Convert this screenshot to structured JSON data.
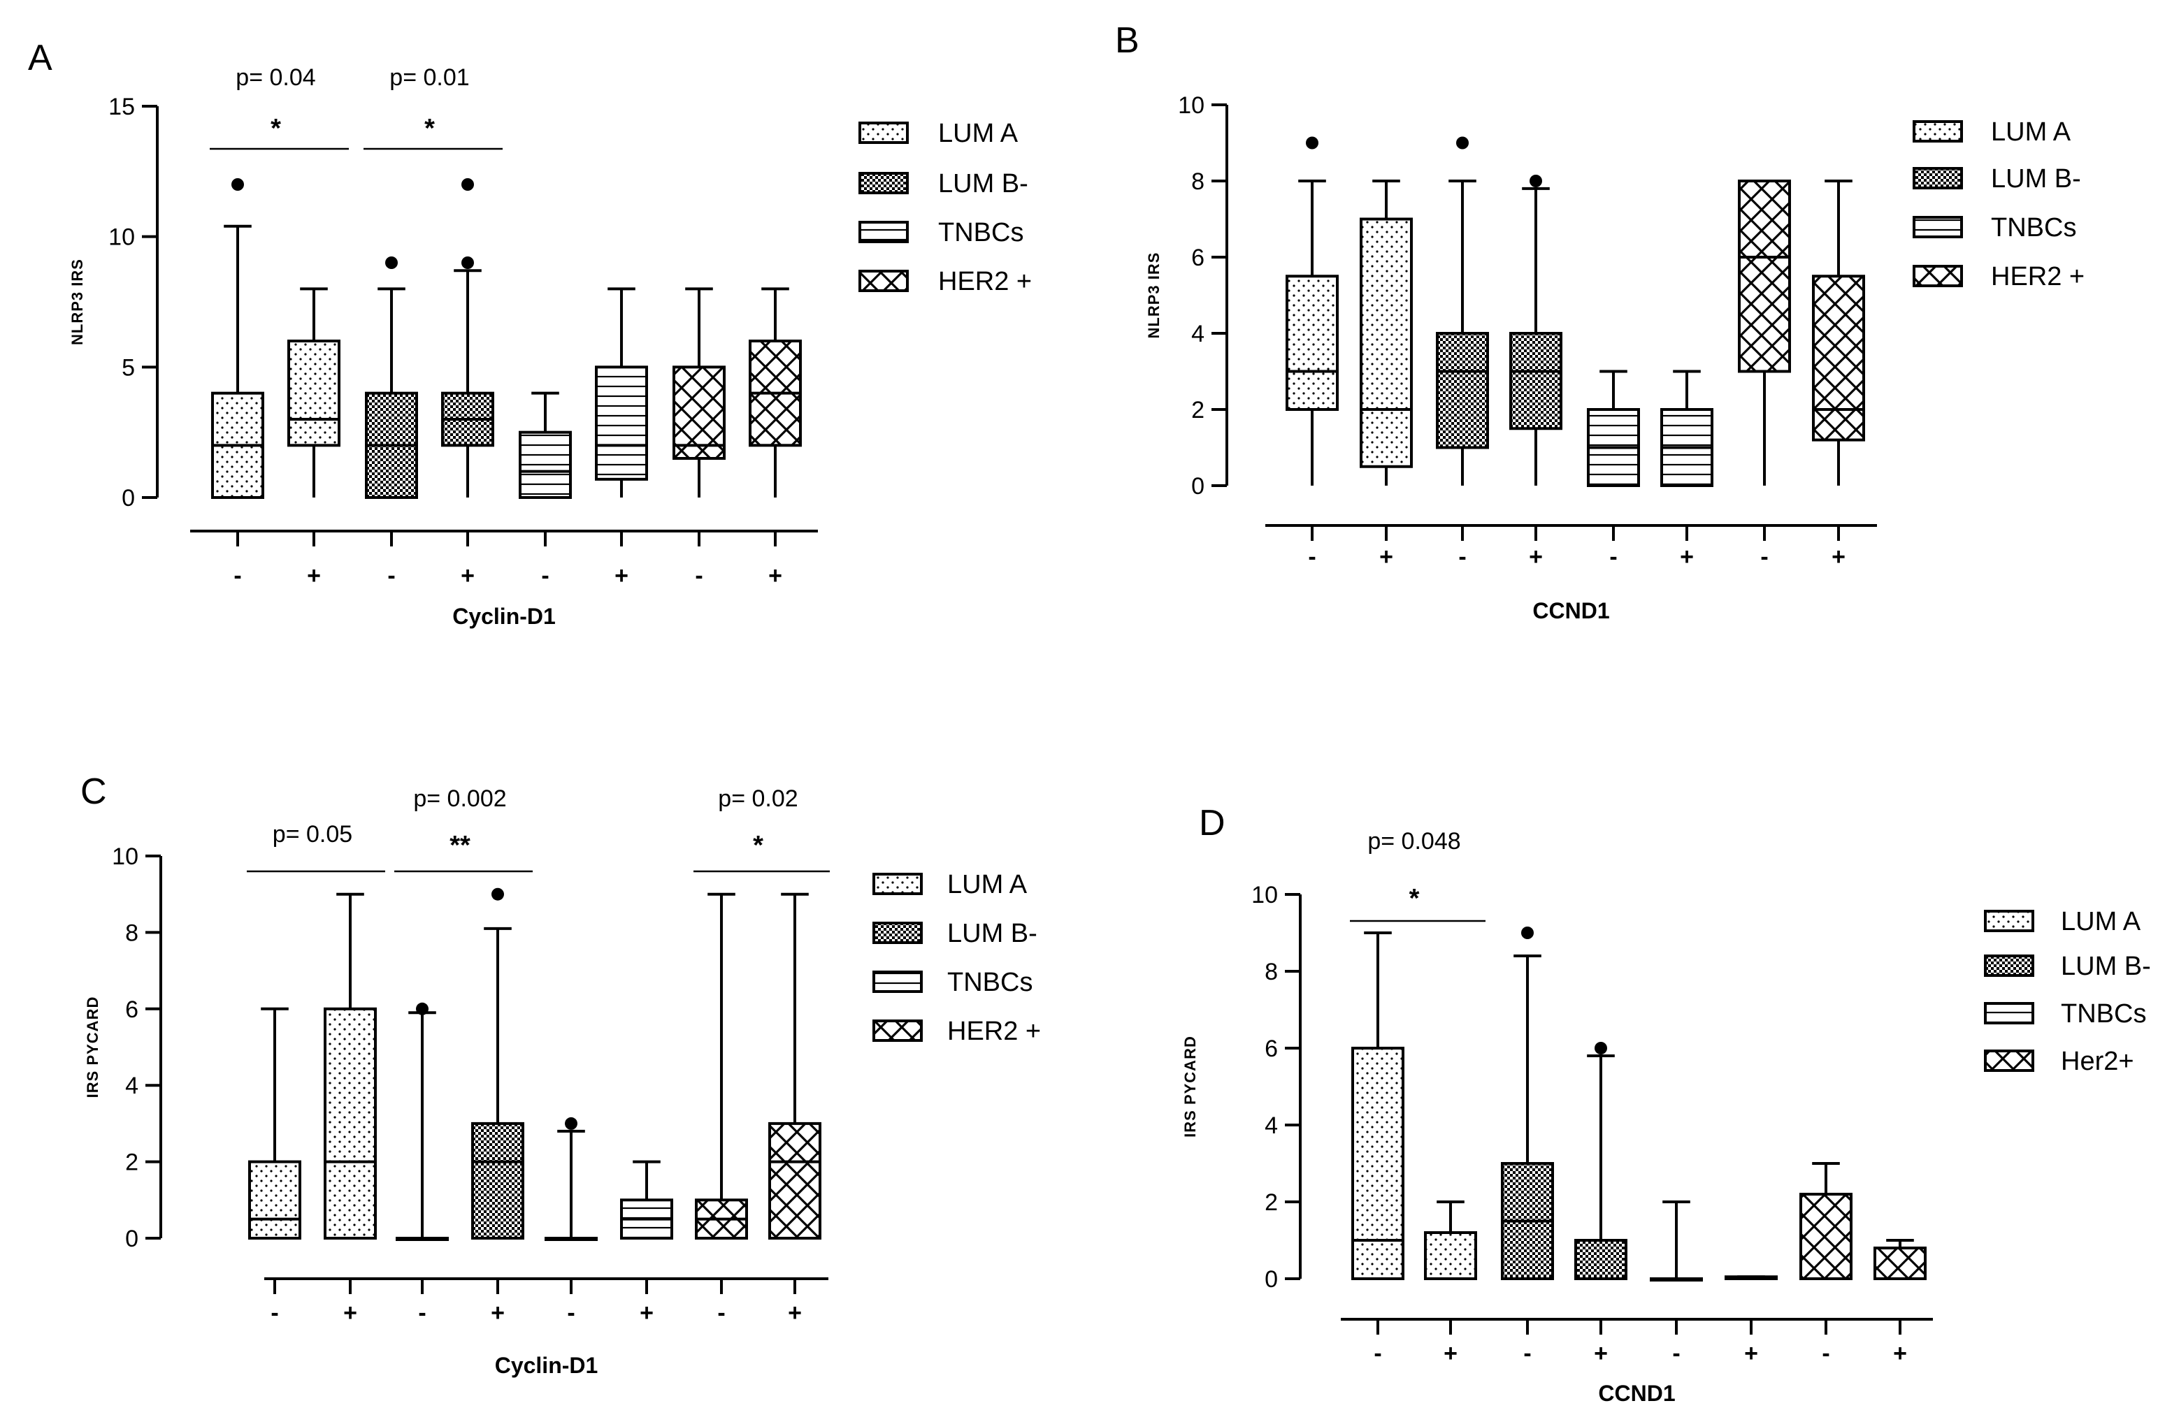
{
  "colors": {
    "ink": "#000000",
    "background": "#ffffff"
  },
  "patterns": {
    "LUM A": "dots",
    "LUM B-": "dense-checker",
    "TNBCs": "horizontal-lines",
    "HER2 +": "cross-hatch"
  },
  "chart_data": [
    {
      "panel": "A",
      "type": "box",
      "ylabel": "NLRP3 IRS",
      "xlabel": "Cyclin-D1",
      "ylim": [
        0,
        15
      ],
      "yticks": [
        "0",
        "5",
        "10",
        "15"
      ],
      "categories": [
        "-",
        "+",
        "-",
        "+",
        "-",
        "+",
        "-",
        "+"
      ],
      "legend": [
        "LUM A",
        "LUM B-",
        "TNBCs",
        "HER2 +"
      ],
      "boxes": [
        {
          "group": "LUM A",
          "cyclin": "-",
          "min": 0,
          "q1": 0,
          "median": 2,
          "q3": 4,
          "max": 10.4,
          "outliers": [
            12
          ]
        },
        {
          "group": "LUM A",
          "cyclin": "+",
          "min": 0,
          "q1": 2,
          "median": 3,
          "q3": 6,
          "max": 8,
          "outliers": []
        },
        {
          "group": "LUM B-",
          "cyclin": "-",
          "min": 0,
          "q1": 0,
          "median": 2,
          "q3": 4,
          "max": 8,
          "outliers": [
            9
          ]
        },
        {
          "group": "LUM B-",
          "cyclin": "+",
          "min": 0,
          "q1": 2,
          "median": 3,
          "q3": 4,
          "max": 8.7,
          "outliers": [
            9,
            12
          ]
        },
        {
          "group": "TNBCs",
          "cyclin": "-",
          "min": 0,
          "q1": 0,
          "median": 1,
          "q3": 2.5,
          "max": 4,
          "outliers": []
        },
        {
          "group": "TNBCs",
          "cyclin": "+",
          "min": 0,
          "q1": 0.7,
          "median": 2,
          "q3": 5,
          "max": 8,
          "outliers": []
        },
        {
          "group": "HER2 +",
          "cyclin": "-",
          "min": 0,
          "q1": 1.5,
          "median": 2,
          "q3": 5,
          "max": 8,
          "outliers": []
        },
        {
          "group": "HER2 +",
          "cyclin": "+",
          "min": 0,
          "q1": 2,
          "median": 4,
          "q3": 6,
          "max": 8,
          "outliers": []
        }
      ],
      "significance": [
        {
          "pair": [
            0,
            1
          ],
          "p": "p= 0.04",
          "stars": "*"
        },
        {
          "pair": [
            2,
            3
          ],
          "p": "p= 0.01",
          "stars": "*"
        }
      ]
    },
    {
      "panel": "B",
      "type": "box",
      "ylabel": "NLRP3 IRS",
      "xlabel": "CCND1",
      "ylim": [
        0,
        10
      ],
      "yticks": [
        "0",
        "2",
        "4",
        "6",
        "8",
        "10"
      ],
      "categories": [
        "-",
        "+",
        "-",
        "+",
        "-",
        "+",
        "-",
        "+"
      ],
      "legend": [
        "LUM A",
        "LUM B-",
        "TNBCs",
        "HER2 +"
      ],
      "boxes": [
        {
          "group": "LUM A",
          "cyclin": "-",
          "min": 0,
          "q1": 2,
          "median": 3,
          "q3": 5.5,
          "max": 8,
          "outliers": [
            9
          ]
        },
        {
          "group": "LUM A",
          "cyclin": "+",
          "min": 0,
          "q1": 0.5,
          "median": 2,
          "q3": 7,
          "max": 8,
          "outliers": []
        },
        {
          "group": "LUM B-",
          "cyclin": "-",
          "min": 0,
          "q1": 1,
          "median": 3,
          "q3": 4,
          "max": 8,
          "outliers": [
            9
          ]
        },
        {
          "group": "LUM B-",
          "cyclin": "+",
          "min": 0,
          "q1": 1.5,
          "median": 3,
          "q3": 4,
          "max": 7.8,
          "outliers": [
            8
          ]
        },
        {
          "group": "TNBCs",
          "cyclin": "-",
          "min": 0,
          "q1": 0,
          "median": 1,
          "q3": 2,
          "max": 3,
          "outliers": []
        },
        {
          "group": "TNBCs",
          "cyclin": "+",
          "min": 0,
          "q1": 0,
          "median": 1,
          "q3": 2,
          "max": 3,
          "outliers": []
        },
        {
          "group": "HER2 +",
          "cyclin": "-",
          "min": 0,
          "q1": 3,
          "median": 6,
          "q3": 8,
          "max": 8,
          "outliers": []
        },
        {
          "group": "HER2 +",
          "cyclin": "+",
          "min": 0,
          "q1": 1.2,
          "median": 2,
          "q3": 5.5,
          "max": 8,
          "outliers": []
        }
      ],
      "significance": []
    },
    {
      "panel": "C",
      "type": "box",
      "ylabel": "IRS PYCARD",
      "xlabel": "Cyclin-D1",
      "ylim": [
        0,
        10
      ],
      "yticks": [
        "0",
        "2",
        "4",
        "6",
        "8",
        "10"
      ],
      "categories": [
        "-",
        "+",
        "-",
        "+",
        "-",
        "+",
        "-",
        "+"
      ],
      "legend": [
        "LUM A",
        "LUM B-",
        "TNBCs",
        "HER2 +"
      ],
      "boxes": [
        {
          "group": "LUM A",
          "cyclin": "-",
          "min": 0,
          "q1": 0,
          "median": 0.5,
          "q3": 2,
          "max": 6,
          "outliers": []
        },
        {
          "group": "LUM A",
          "cyclin": "+",
          "min": 0,
          "q1": 0,
          "median": 2,
          "q3": 6,
          "max": 9,
          "outliers": []
        },
        {
          "group": "LUM B-",
          "cyclin": "-",
          "min": 0,
          "q1": 0,
          "median": 0,
          "q3": 0,
          "max": 5.9,
          "outliers": [
            6
          ]
        },
        {
          "group": "LUM B-",
          "cyclin": "+",
          "min": 0,
          "q1": 0,
          "median": 2,
          "q3": 3,
          "max": 8.1,
          "outliers": [
            9
          ]
        },
        {
          "group": "TNBCs",
          "cyclin": "-",
          "min": 0,
          "q1": 0,
          "median": 0,
          "q3": 0,
          "max": 2.8,
          "outliers": [
            3
          ]
        },
        {
          "group": "TNBCs",
          "cyclin": "+",
          "min": 0,
          "q1": 0,
          "median": 0.5,
          "q3": 1,
          "max": 2,
          "outliers": []
        },
        {
          "group": "HER2 +",
          "cyclin": "-",
          "min": 0,
          "q1": 0,
          "median": 0.5,
          "q3": 1,
          "max": 9,
          "outliers": []
        },
        {
          "group": "HER2 +",
          "cyclin": "+",
          "min": 0,
          "q1": 0,
          "median": 2,
          "q3": 3,
          "max": 9,
          "outliers": []
        }
      ],
      "significance": [
        {
          "pair": [
            0,
            1
          ],
          "p": "p= 0.05",
          "stars": ""
        },
        {
          "pair": [
            2,
            3
          ],
          "p": "p= 0.002",
          "stars": "**"
        },
        {
          "pair": [
            6,
            7
          ],
          "p": "p= 0.02",
          "stars": "*"
        }
      ]
    },
    {
      "panel": "D",
      "type": "box",
      "ylabel": "IRS PYCARD",
      "xlabel": "CCND1",
      "ylim": [
        0,
        10
      ],
      "yticks": [
        "0",
        "2",
        "4",
        "6",
        "8",
        "10"
      ],
      "categories": [
        "-",
        "+",
        "-",
        "+",
        "-",
        "+",
        "-",
        "+"
      ],
      "legend": [
        "LUM A",
        "LUM B-",
        "TNBCs",
        "Her2+"
      ],
      "boxes": [
        {
          "group": "LUM A",
          "cyclin": "-",
          "min": 0,
          "q1": 0,
          "median": 1,
          "q3": 6,
          "max": 9,
          "outliers": []
        },
        {
          "group": "LUM A",
          "cyclin": "+",
          "min": 0,
          "q1": 0,
          "median": 0,
          "q3": 1.2,
          "max": 2,
          "outliers": []
        },
        {
          "group": "LUM B-",
          "cyclin": "-",
          "min": 0,
          "q1": 0,
          "median": 1.5,
          "q3": 3,
          "max": 8.4,
          "outliers": [
            9
          ]
        },
        {
          "group": "LUM B-",
          "cyclin": "+",
          "min": 0,
          "q1": 0,
          "median": 0,
          "q3": 1,
          "max": 5.8,
          "outliers": [
            6
          ]
        },
        {
          "group": "TNBCs",
          "cyclin": "-",
          "min": 0,
          "q1": 0,
          "median": 0,
          "q3": 0,
          "max": 2,
          "outliers": []
        },
        {
          "group": "TNBCs",
          "cyclin": "+",
          "min": 0,
          "q1": 0,
          "median": 0,
          "q3": 0.05,
          "max": 0.05,
          "outliers": []
        },
        {
          "group": "HER2 +",
          "cyclin": "-",
          "min": 0,
          "q1": 0,
          "median": 0,
          "q3": 2.2,
          "max": 3,
          "outliers": []
        },
        {
          "group": "HER2 +",
          "cyclin": "+",
          "min": 0,
          "q1": 0,
          "median": 0,
          "q3": 0.8,
          "max": 1,
          "outliers": []
        }
      ],
      "significance": [
        {
          "pair": [
            0,
            1
          ],
          "p": "p= 0.048",
          "stars": "*"
        }
      ]
    }
  ]
}
